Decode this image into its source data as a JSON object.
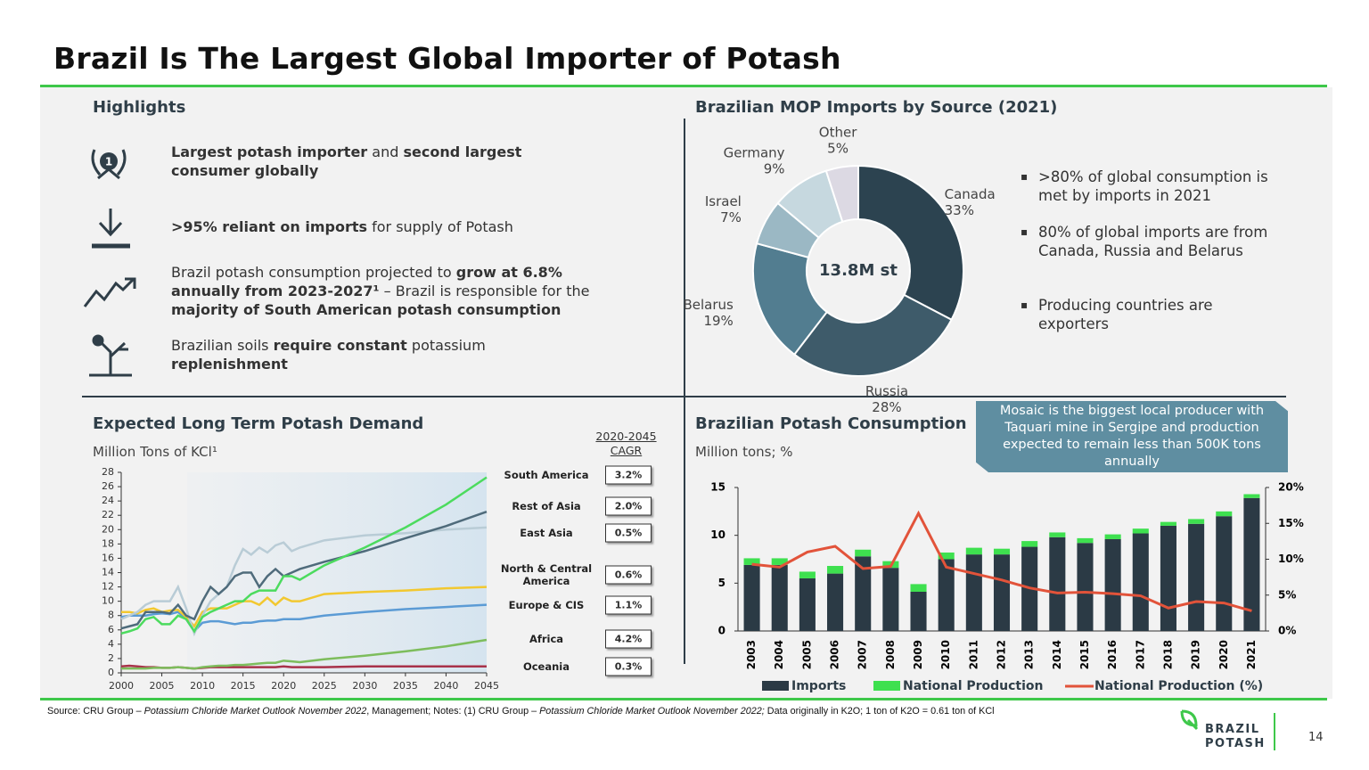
{
  "header": {
    "title": "Brazil Is The Largest Global Importer of Potash"
  },
  "highlights": {
    "title": "Highlights",
    "icon_label": "1",
    "items": [
      {
        "segments": [
          {
            "text": "Largest potash importer",
            "bold": true
          },
          {
            "text": " and "
          },
          {
            "text": "second largest consumer globally",
            "bold": true
          }
        ]
      },
      {
        "segments": [
          {
            "text": ">95% reliant on imports",
            "bold": true
          },
          {
            "text": " for supply of Potash"
          }
        ]
      },
      {
        "segments": [
          {
            "text": "Brazil potash consumption projected to "
          },
          {
            "text": "grow at 6.8% annually from 2023-2027¹",
            "bold": true
          },
          {
            "text": " – Brazil is responsible for the "
          },
          {
            "text": "majority of South American potash consumption",
            "bold": true
          }
        ]
      },
      {
        "segments": [
          {
            "text": "Brazilian soils "
          },
          {
            "text": "require constant",
            "bold": true
          },
          {
            "text": " potassium "
          },
          {
            "text": "replenishment",
            "bold": true
          }
        ]
      }
    ]
  },
  "chart_data": [
    {
      "type": "pie",
      "title": "Brazilian MOP Imports by Source (2021)",
      "center_label": "13.8M st",
      "categories": [
        "Canada",
        "Russia",
        "Belarus",
        "Israel",
        "Germany",
        "Other"
      ],
      "values": [
        33,
        28,
        19,
        7,
        9,
        5
      ],
      "value_labels": [
        "33%",
        "28%",
        "19%",
        "7%",
        "9%",
        "5%"
      ],
      "colors": [
        "#2c4350",
        "#3e5b6a",
        "#527d90",
        "#9bb8c4",
        "#c6d8df",
        "#dcd9e3"
      ],
      "bullets": [
        ">80% of global consumption is met by imports in 2021",
        "80% of global imports are from Canada, Russia and Belarus",
        "Producing countries are exporters"
      ]
    },
    {
      "type": "line",
      "title": "Expected Long Term Potash Demand",
      "subtitle": "Million Tons of KCl¹",
      "cagr_header": "2020-2045 CAGR",
      "x": [
        2000,
        2001,
        2002,
        2003,
        2004,
        2005,
        2006,
        2007,
        2008,
        2009,
        2010,
        2011,
        2012,
        2013,
        2014,
        2015,
        2016,
        2017,
        2018,
        2019,
        2020,
        2021,
        2022,
        2025,
        2030,
        2035,
        2040,
        2045
      ],
      "xlim": [
        2000,
        2045
      ],
      "xticks": [
        2000,
        2005,
        2010,
        2015,
        2020,
        2025,
        2030,
        2035,
        2040,
        2045
      ],
      "ylim": [
        0,
        28
      ],
      "yticks": [
        0,
        2,
        4,
        6,
        8,
        10,
        12,
        14,
        16,
        18,
        20,
        22,
        24,
        26,
        28
      ],
      "series": [
        {
          "name": "South America",
          "color": "#4cdb5e",
          "cagr": "3.2%",
          "values": [
            5.5,
            5.8,
            6.2,
            7.5,
            7.8,
            6.8,
            6.8,
            8.0,
            7.5,
            5.8,
            7.8,
            8.5,
            9.0,
            9.5,
            10.0,
            10.0,
            11.0,
            11.5,
            11.5,
            11.5,
            13.5,
            13.5,
            13.0,
            15.0,
            17.5,
            20.3,
            23.5,
            27.3
          ]
        },
        {
          "name": "Rest of Asia",
          "color": "#4f6b7b",
          "cagr": "2.0%",
          "values": [
            6.2,
            6.5,
            6.8,
            8.5,
            8.5,
            8.5,
            8.3,
            9.5,
            8.0,
            7.5,
            10.0,
            12.0,
            11.0,
            12.0,
            13.5,
            14.0,
            14.0,
            12.0,
            13.5,
            14.5,
            13.5,
            14.0,
            14.5,
            15.5,
            17.0,
            18.8,
            20.5,
            22.5
          ]
        },
        {
          "name": "East Asia",
          "color": "#b9ccd6",
          "cagr": "0.5%",
          "values": [
            7.5,
            8.0,
            8.5,
            9.5,
            10.0,
            10.0,
            10.0,
            12.0,
            9.0,
            5.5,
            8.0,
            10.0,
            11.0,
            12.0,
            15.0,
            17.3,
            16.5,
            17.5,
            16.8,
            17.8,
            18.2,
            17.0,
            17.5,
            18.5,
            19.2,
            19.5,
            20.0,
            20.3
          ]
        },
        {
          "name": "North & Central America",
          "color": "#f2c830",
          "cagr": "0.6%",
          "values": [
            8.5,
            8.5,
            8.3,
            8.8,
            9.0,
            8.5,
            8.7,
            8.8,
            7.8,
            6.5,
            8.5,
            9.0,
            9.0,
            9.0,
            9.5,
            10.0,
            10.0,
            9.5,
            10.5,
            9.5,
            10.5,
            10.0,
            10.0,
            11.0,
            11.3,
            11.5,
            11.8,
            12.0
          ]
        },
        {
          "name": "Europe & CIS",
          "color": "#5b9bd5",
          "cagr": "1.1%",
          "values": [
            7.8,
            8.0,
            8.0,
            8.0,
            8.2,
            8.3,
            8.2,
            8.5,
            7.5,
            5.8,
            7.0,
            7.2,
            7.2,
            7.0,
            6.8,
            7.0,
            7.0,
            7.2,
            7.3,
            7.3,
            7.5,
            7.5,
            7.5,
            8.0,
            8.5,
            8.9,
            9.2,
            9.5
          ]
        },
        {
          "name": "Africa",
          "color": "#7dbd5c",
          "cagr": "4.2%",
          "values": [
            0.6,
            0.6,
            0.6,
            0.6,
            0.7,
            0.7,
            0.7,
            0.8,
            0.7,
            0.6,
            0.8,
            0.9,
            1.0,
            1.0,
            1.1,
            1.1,
            1.2,
            1.3,
            1.4,
            1.4,
            1.7,
            1.6,
            1.5,
            1.9,
            2.4,
            3.0,
            3.7,
            4.6
          ]
        },
        {
          "name": "Oceania",
          "color": "#a8324a",
          "cagr": "0.3%",
          "values": [
            0.9,
            1.0,
            0.9,
            0.8,
            0.8,
            0.7,
            0.7,
            0.8,
            0.7,
            0.6,
            0.7,
            0.8,
            0.8,
            0.8,
            0.8,
            0.8,
            0.8,
            0.8,
            0.8,
            0.8,
            0.9,
            0.8,
            0.8,
            0.8,
            0.9,
            0.9,
            0.9,
            0.9
          ]
        }
      ]
    },
    {
      "type": "bar",
      "title": "Brazilian Potash Consumption",
      "subtitle": "Million tons; %",
      "callout": "Mosaic is the biggest local producer with Taquari mine in Sergipe and production expected to remain less than 500K tons annually",
      "categories": [
        "2003",
        "2004",
        "2005",
        "2006",
        "2007",
        "2008",
        "2009",
        "2010",
        "2011",
        "2012",
        "2013",
        "2014",
        "2015",
        "2016",
        "2017",
        "2018",
        "2019",
        "2020",
        "2021"
      ],
      "ylim": [
        0,
        15
      ],
      "yticks": [
        0,
        5,
        10,
        15
      ],
      "y2lim": [
        0,
        20
      ],
      "y2ticks": [
        {
          "value": 0,
          "label": "0%"
        },
        {
          "value": 5,
          "label": "5%"
        },
        {
          "value": 10,
          "label": "10%"
        },
        {
          "value": 15,
          "label": "15%"
        },
        {
          "value": 20,
          "label": "20%"
        }
      ],
      "series": [
        {
          "name": "Imports",
          "color": "#2b3a45",
          "stacked": true,
          "values": [
            6.9,
            6.9,
            5.5,
            6.0,
            7.8,
            6.6,
            4.1,
            7.5,
            8.0,
            8.0,
            8.8,
            9.8,
            9.2,
            9.6,
            10.2,
            11.0,
            11.2,
            12.0,
            13.9
          ]
        },
        {
          "name": "National Production",
          "color": "#3ee04f",
          "stacked": true,
          "values": [
            0.7,
            0.7,
            0.7,
            0.8,
            0.7,
            0.7,
            0.8,
            0.7,
            0.7,
            0.6,
            0.6,
            0.5,
            0.5,
            0.5,
            0.5,
            0.4,
            0.5,
            0.5,
            0.4
          ]
        },
        {
          "name": "National Production (%)",
          "color": "#e2533a",
          "type": "line",
          "axis": "y2",
          "values": [
            9.3,
            8.9,
            11.0,
            11.8,
            8.7,
            9.0,
            16.4,
            8.9,
            8.0,
            7.1,
            6.0,
            5.3,
            5.4,
            5.2,
            4.9,
            3.2,
            4.1,
            3.9,
            2.8
          ]
        }
      ]
    }
  ],
  "footer": {
    "source": [
      {
        "text": "Source: CRU Group – "
      },
      {
        "text": "Potassium Chloride Market Outlook November 2022",
        "italic": true
      },
      {
        "text": ", Management; Notes: (1) CRU Group – "
      },
      {
        "text": "Potassium Chloride Market Outlook November 2022;",
        "italic": true
      },
      {
        "text": " Data originally in K2O; 1 ton of K2O = 0.61 ton of KCl"
      }
    ],
    "logo": [
      "BRAZIL",
      "POTASH"
    ],
    "page": "14"
  }
}
